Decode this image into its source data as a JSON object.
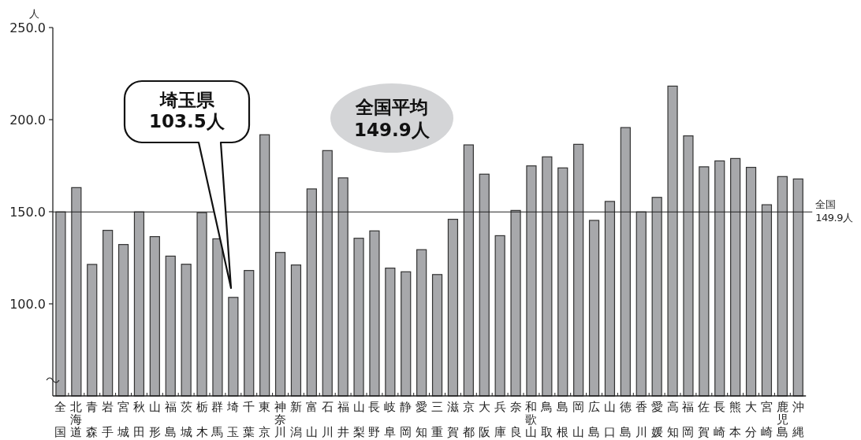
{
  "chart_data": {
    "type": "bar",
    "ylabel": "人",
    "categories": [
      "全国",
      "北海道",
      "青森",
      "岩手",
      "宮城",
      "秋田",
      "山形",
      "福島",
      "茨城",
      "栃木",
      "群馬",
      "埼玉",
      "千葉",
      "東京",
      "神奈川",
      "新潟",
      "富山",
      "石川",
      "福井",
      "山梨",
      "長野",
      "岐阜",
      "静岡",
      "愛知",
      "三重",
      "滋賀",
      "京都",
      "大阪",
      "兵庫",
      "奈良",
      "和歌山",
      "鳥取",
      "島根",
      "岡山",
      "広島",
      "山口",
      "徳島",
      "香川",
      "愛媛",
      "高知",
      "福岡",
      "佐賀",
      "長崎",
      "熊本",
      "大分",
      "宮崎",
      "鹿児島",
      "沖縄"
    ],
    "values": [
      149.9,
      163.1,
      121.4,
      139.9,
      132.2,
      149.9,
      136.5,
      125.9,
      121.5,
      149.5,
      135.3,
      103.5,
      118.1,
      191.8,
      127.9,
      121.1,
      162.4,
      183.2,
      168.4,
      135.6,
      139.6,
      119.4,
      117.4,
      129.4,
      115.9,
      145.9,
      186.3,
      170.4,
      137.0,
      150.7,
      174.9,
      179.8,
      173.8,
      186.6,
      145.3,
      155.6,
      195.7,
      149.9,
      157.8,
      218.2,
      191.2,
      174.4,
      177.6,
      178.9,
      174.1,
      153.8,
      169.1,
      167.8
    ],
    "color": "#a7a8ab",
    "ylim": [
      50,
      250
    ],
    "yticks": [
      {
        "value": 100,
        "label": "100.0"
      },
      {
        "value": 150,
        "label": "150.0"
      },
      {
        "value": 200,
        "label": "200.0"
      },
      {
        "value": 250,
        "label": "250.0"
      }
    ],
    "ref_lines": [
      {
        "axis": "y",
        "value": 149.9,
        "label": "全国 149.9人"
      }
    ],
    "annotations": [
      "埼玉県 103.5人",
      "全国平均 149.9人"
    ],
    "grid": false
  }
}
